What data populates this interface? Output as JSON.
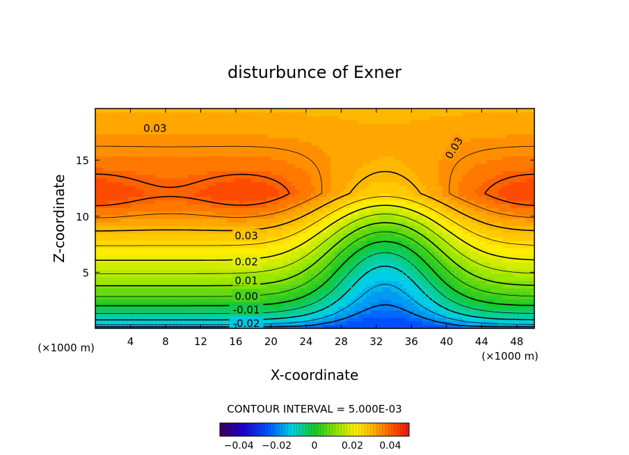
{
  "chart_data": {
    "type": "contour",
    "title": "disturbunce of Exner",
    "xlabel": "X-coordinate",
    "ylabel": "Z-coordinate",
    "x_unit": "(×1000 m)",
    "y_unit": "(×1000 m)",
    "xlim": [
      0,
      50
    ],
    "ylim": [
      0,
      19.6
    ],
    "x_ticks": [
      4,
      8,
      12,
      16,
      20,
      24,
      28,
      32,
      36,
      40,
      44,
      48
    ],
    "y_ticks": [
      5,
      10,
      15
    ],
    "contour_interval_text": "CONTOUR INTERVAL = 5.000E-03",
    "contour_labels": [
      {
        "text": "0.03",
        "x": 6.8,
        "z": 17.9
      },
      {
        "text": "0.03",
        "x": 40.8,
        "z": 16.1,
        "angle": -58
      },
      {
        "text": "0.03",
        "x": 17.2,
        "z": 8.3
      },
      {
        "text": "0.02",
        "x": 17.2,
        "z": 6.0
      },
      {
        "text": "0.01",
        "x": 17.2,
        "z": 4.3
      },
      {
        "text": "0.00",
        "x": 17.2,
        "z": 2.9
      },
      {
        "text": "-0.01",
        "x": 17.2,
        "z": 1.7
      },
      {
        "text": "-0.02",
        "x": 17.2,
        "z": 0.5
      }
    ],
    "colorbar": {
      "min": -0.05,
      "max": 0.05,
      "tick_values": [
        -0.04,
        -0.02,
        0,
        0.02,
        0.04
      ],
      "tick_labels": [
        "−0.04",
        "−0.02",
        "0",
        "0.02",
        "0.04"
      ]
    },
    "field_description": {
      "max_value": 0.043,
      "min_value": -0.024,
      "high_centers": [
        {
          "x": 0,
          "z": 12
        },
        {
          "x": 17,
          "z": 12
        },
        {
          "x": 50,
          "z": 12
        }
      ],
      "low_center": {
        "x": 33,
        "z": 0
      }
    }
  }
}
